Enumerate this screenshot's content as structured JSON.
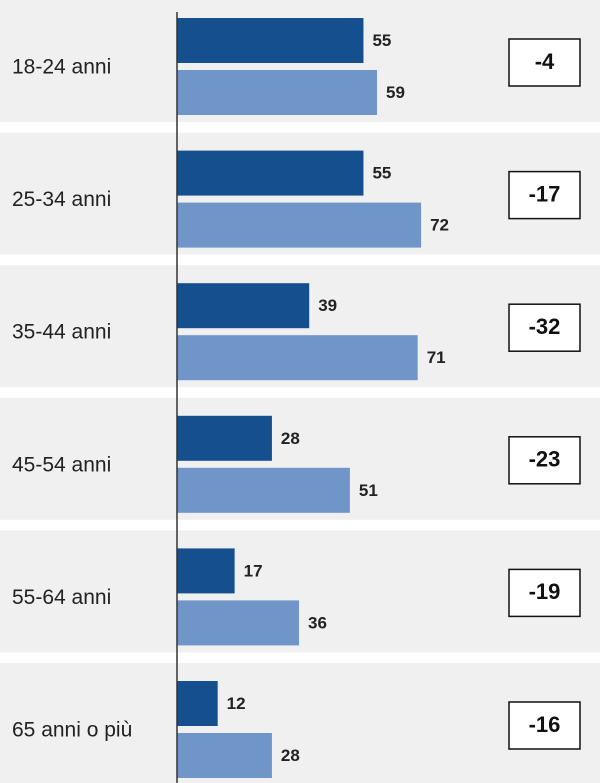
{
  "chart_data": {
    "type": "grouped-hbar",
    "categories": [
      "18-24 anni",
      "25-34 anni",
      "35-44 anni",
      "45-54 anni",
      "55-64 anni",
      "65 anni o più"
    ],
    "series": [
      {
        "color": "#154f8e",
        "values": [
          55,
          55,
          39,
          28,
          17,
          12
        ]
      },
      {
        "color": "#6f95c9",
        "values": [
          59,
          72,
          71,
          51,
          36,
          28
        ]
      }
    ],
    "differences": [
      -4,
      -17,
      -32,
      -23,
      -19,
      -16
    ],
    "xlim": [
      0,
      100
    ]
  }
}
